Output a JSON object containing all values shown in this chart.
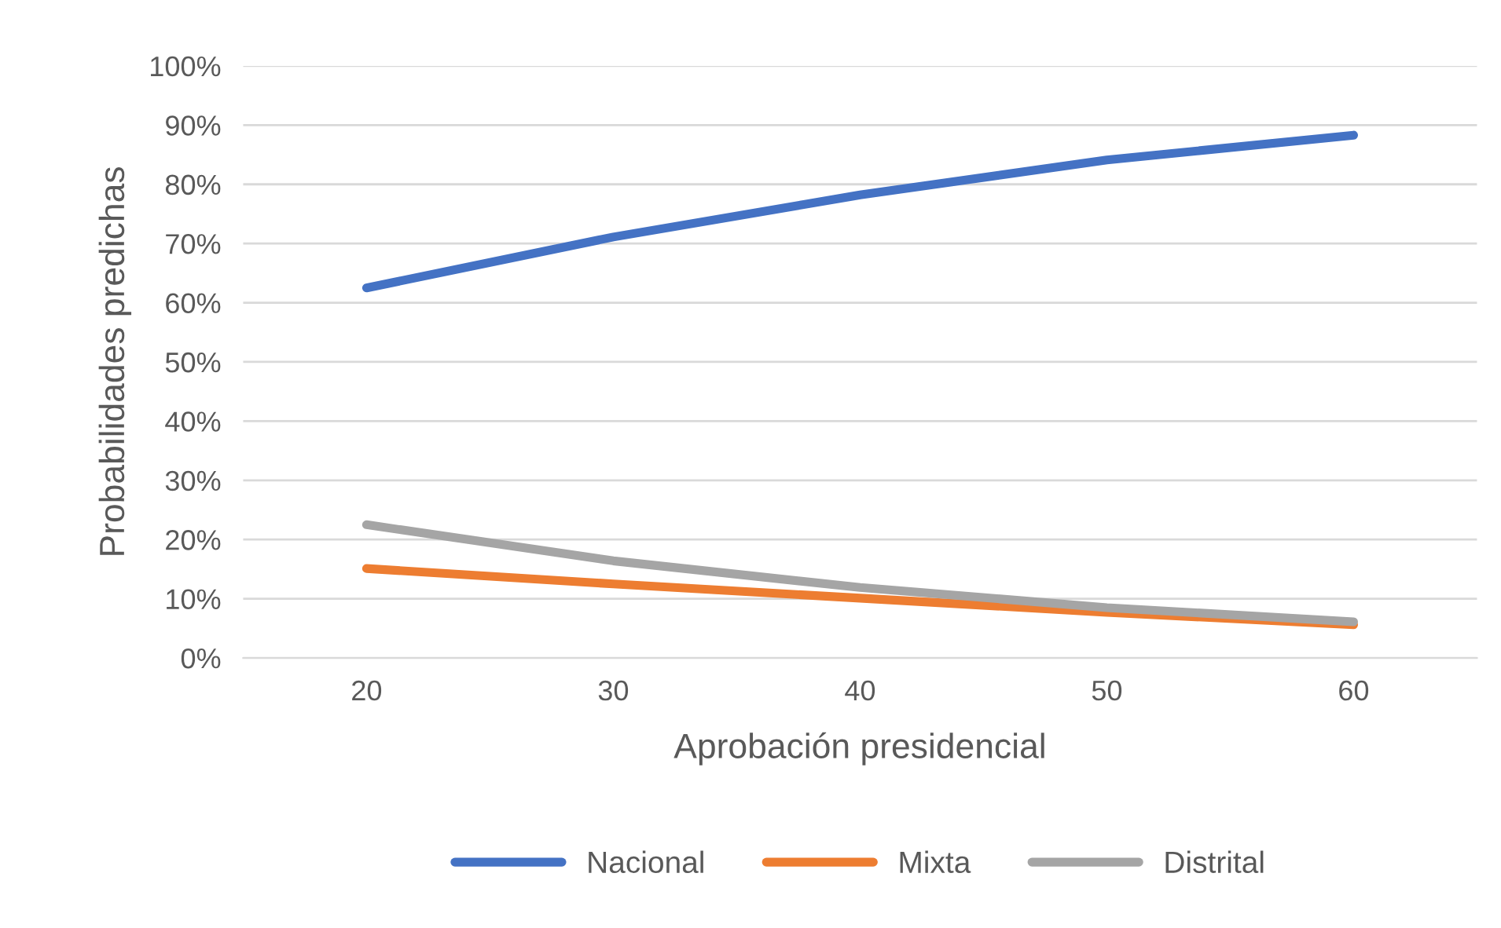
{
  "chart_data": {
    "type": "line",
    "xlabel": "Aprobación presidencial",
    "ylabel": "Probabilidades predichas",
    "categories": [
      "20",
      "30",
      "40",
      "50",
      "60"
    ],
    "series": [
      {
        "name": "Nacional",
        "color": "#4472c4",
        "values": [
          62.5,
          71.1,
          78.2,
          84.1,
          88.3
        ]
      },
      {
        "name": "Mixta",
        "color": "#ed7d31",
        "values": [
          15.1,
          12.5,
          10.1,
          7.7,
          5.6
        ]
      },
      {
        "name": "Distrital",
        "color": "#a5a5a5",
        "values": [
          22.5,
          16.4,
          11.9,
          8.5,
          6.1
        ]
      }
    ],
    "ylim": [
      0,
      100
    ],
    "yticks": [
      {
        "value": 0,
        "label": "0%"
      },
      {
        "value": 10,
        "label": "10%"
      },
      {
        "value": 20,
        "label": "20%"
      },
      {
        "value": 30,
        "label": "30%"
      },
      {
        "value": 40,
        "label": "40%"
      },
      {
        "value": 50,
        "label": "50%"
      },
      {
        "value": 60,
        "label": "60%"
      },
      {
        "value": 70,
        "label": "70%"
      },
      {
        "value": 80,
        "label": "80%"
      },
      {
        "value": 90,
        "label": "90%"
      },
      {
        "value": 100,
        "label": "100%"
      }
    ],
    "grid": "y",
    "legend": "bottom",
    "marker": "none",
    "line_style": "solid"
  }
}
